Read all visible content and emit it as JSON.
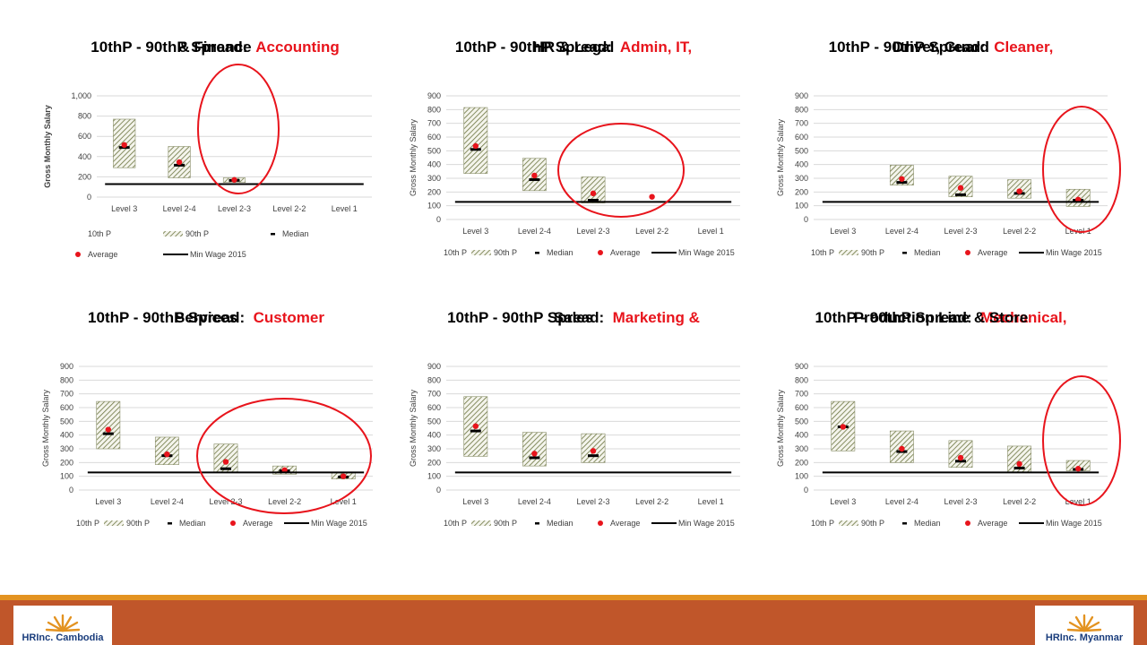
{
  "colors": {
    "accent_red": "#e8141c",
    "bar_hatch": "#6b7440",
    "orange_band": "#c0562a",
    "orange_strip": "#e39321",
    "logo_blue": "#1a3d7c"
  },
  "footer": {
    "logo_left": {
      "prefix": "HRInc.",
      "name": "Cambodia"
    },
    "logo_right": {
      "prefix": "HRInc.",
      "name": "Myanmar"
    }
  },
  "chart_data": [
    {
      "type": "bar",
      "title_black": "10thP - 90thP Spread:",
      "title_red_1": "Accounting",
      "title_red_2": "& Finance",
      "ylabel": "Gross Monthly Salary",
      "ylim": [
        0,
        1000
      ],
      "yticks": [
        "0",
        "200",
        "400",
        "600",
        "800",
        "1,000"
      ],
      "yticks_values": [
        0,
        200,
        400,
        600,
        800,
        1000
      ],
      "categories": [
        "Level 3",
        "Level 2-4",
        "Level 2-3",
        "Level 2-2",
        "Level 1"
      ],
      "p10": [
        290,
        190,
        145,
        null,
        null
      ],
      "p90": [
        770,
        500,
        190,
        null,
        null
      ],
      "median": [
        490,
        315,
        165,
        null,
        null
      ],
      "average": [
        515,
        345,
        170,
        null,
        null
      ],
      "min_wage": 128,
      "legend": [
        "10th P",
        "90th P",
        "Median",
        "Average",
        "Min Wage 2015"
      ],
      "legend_layout": "two-row",
      "highlight": "circle around Level 2-3"
    },
    {
      "type": "bar",
      "title_black": "10thP - 90thP Spread:",
      "title_red_1": "Admin, IT,",
      "title_red_2": "HR & Legal",
      "ylabel": "Gross Monthly Salary",
      "ylim": [
        0,
        900
      ],
      "yticks": [
        "0",
        "100",
        "200",
        "300",
        "400",
        "500",
        "600",
        "700",
        "800",
        "900"
      ],
      "yticks_values": [
        0,
        100,
        200,
        300,
        400,
        500,
        600,
        700,
        800,
        900
      ],
      "categories": [
        "Level 3",
        "Level 2-4",
        "Level 2-3",
        "Level 2-2",
        "Level 1"
      ],
      "p10": [
        335,
        210,
        120,
        null,
        null
      ],
      "p90": [
        815,
        445,
        310,
        null,
        null
      ],
      "median": [
        510,
        290,
        140,
        null,
        null
      ],
      "average": [
        535,
        320,
        190,
        165,
        null
      ],
      "min_wage": 128,
      "legend": [
        "10th P",
        "90th P",
        "Median",
        "Average",
        "Min Wage 2015"
      ],
      "legend_layout": "one-row",
      "highlight": "circle around Level 2-3 and Level 2-2"
    },
    {
      "type": "bar",
      "title_black": "10thP - 90thP Spread:",
      "title_red_1": "Cleaner,",
      "title_red_2": "Driver, Guard",
      "ylabel": "Gross Monthly Salary",
      "ylim": [
        0,
        900
      ],
      "yticks": [
        "0",
        "100",
        "200",
        "300",
        "400",
        "500",
        "600",
        "700",
        "800",
        "900"
      ],
      "yticks_values": [
        0,
        100,
        200,
        300,
        400,
        500,
        600,
        700,
        800,
        900
      ],
      "categories": [
        "Level 3",
        "Level 2-4",
        "Level 2-3",
        "Level 2-2",
        "Level 1"
      ],
      "p10": [
        null,
        250,
        165,
        155,
        95
      ],
      "p90": [
        null,
        395,
        315,
        290,
        220
      ],
      "median": [
        null,
        270,
        180,
        190,
        140
      ],
      "average": [
        null,
        295,
        230,
        205,
        145
      ],
      "min_wage": 128,
      "legend": [
        "10th P",
        "90th P",
        "Median",
        "Average",
        "Min Wage 2015"
      ],
      "legend_layout": "one-row",
      "highlight": "circle around Level 1"
    },
    {
      "type": "bar",
      "title_black": "10thP - 90thP Spread:",
      "title_red_1": "Customer",
      "title_red_2": "Services",
      "ylabel": "Gross Monthly Salary",
      "ylim": [
        0,
        900
      ],
      "yticks": [
        "0",
        "100",
        "200",
        "300",
        "400",
        "500",
        "600",
        "700",
        "800",
        "900"
      ],
      "yticks_values": [
        0,
        100,
        200,
        300,
        400,
        500,
        600,
        700,
        800,
        900
      ],
      "categories": [
        "Level 3",
        "Level 2-4",
        "Level 2-3",
        "Level 2-2",
        "Level 1"
      ],
      "p10": [
        300,
        185,
        130,
        115,
        80
      ],
      "p90": [
        645,
        385,
        335,
        175,
        125
      ],
      "median": [
        410,
        250,
        155,
        140,
        95
      ],
      "average": [
        440,
        260,
        205,
        145,
        100
      ],
      "min_wage": 128,
      "legend": [
        "10th P",
        "90th P",
        "Median",
        "Average",
        "Min Wage 2015"
      ],
      "legend_layout": "one-row",
      "highlight": "circle around Level 2-3 to Level 1"
    },
    {
      "type": "bar",
      "title_black": "10thP - 90thP Spread:",
      "title_red_1": "Marketing &",
      "title_red_2": "Sales",
      "ylabel": "Gross Monthly Salary",
      "ylim": [
        0,
        900
      ],
      "yticks": [
        "0",
        "100",
        "200",
        "300",
        "400",
        "500",
        "600",
        "700",
        "800",
        "900"
      ],
      "yticks_values": [
        0,
        100,
        200,
        300,
        400,
        500,
        600,
        700,
        800,
        900
      ],
      "categories": [
        "Level 3",
        "Level 2-4",
        "Level 2-3",
        "Level 2-2",
        "Level 1"
      ],
      "p10": [
        245,
        175,
        200,
        null,
        null
      ],
      "p90": [
        680,
        420,
        410,
        null,
        null
      ],
      "median": [
        430,
        235,
        250,
        null,
        null
      ],
      "average": [
        465,
        265,
        285,
        null,
        null
      ],
      "min_wage": 128,
      "legend": [
        "10th P",
        "90th P",
        "Median",
        "Average",
        "Min Wage 2015"
      ],
      "legend_layout": "one-row",
      "highlight": "none"
    },
    {
      "type": "bar",
      "title_black": "10thP - 90thP Spread:",
      "title_red_1": "Mechanical,",
      "title_red_2": "Production Line & Store",
      "ylabel": "Gross Monthly Salary",
      "ylim": [
        0,
        900
      ],
      "yticks": [
        "0",
        "100",
        "200",
        "300",
        "400",
        "500",
        "600",
        "700",
        "800",
        "900"
      ],
      "yticks_values": [
        0,
        100,
        200,
        300,
        400,
        500,
        600,
        700,
        800,
        900
      ],
      "categories": [
        "Level 3",
        "Level 2-4",
        "Level 2-3",
        "Level 2-2",
        "Level 1"
      ],
      "p10": [
        285,
        200,
        165,
        130,
        140
      ],
      "p90": [
        645,
        430,
        360,
        320,
        215
      ],
      "median": [
        460,
        280,
        210,
        160,
        150
      ],
      "average": [
        460,
        300,
        235,
        190,
        155
      ],
      "min_wage": 128,
      "legend": [
        "10th P",
        "90th P",
        "Median",
        "Average",
        "Min Wage 2015"
      ],
      "legend_layout": "one-row",
      "highlight": "circle around Level 1"
    }
  ]
}
